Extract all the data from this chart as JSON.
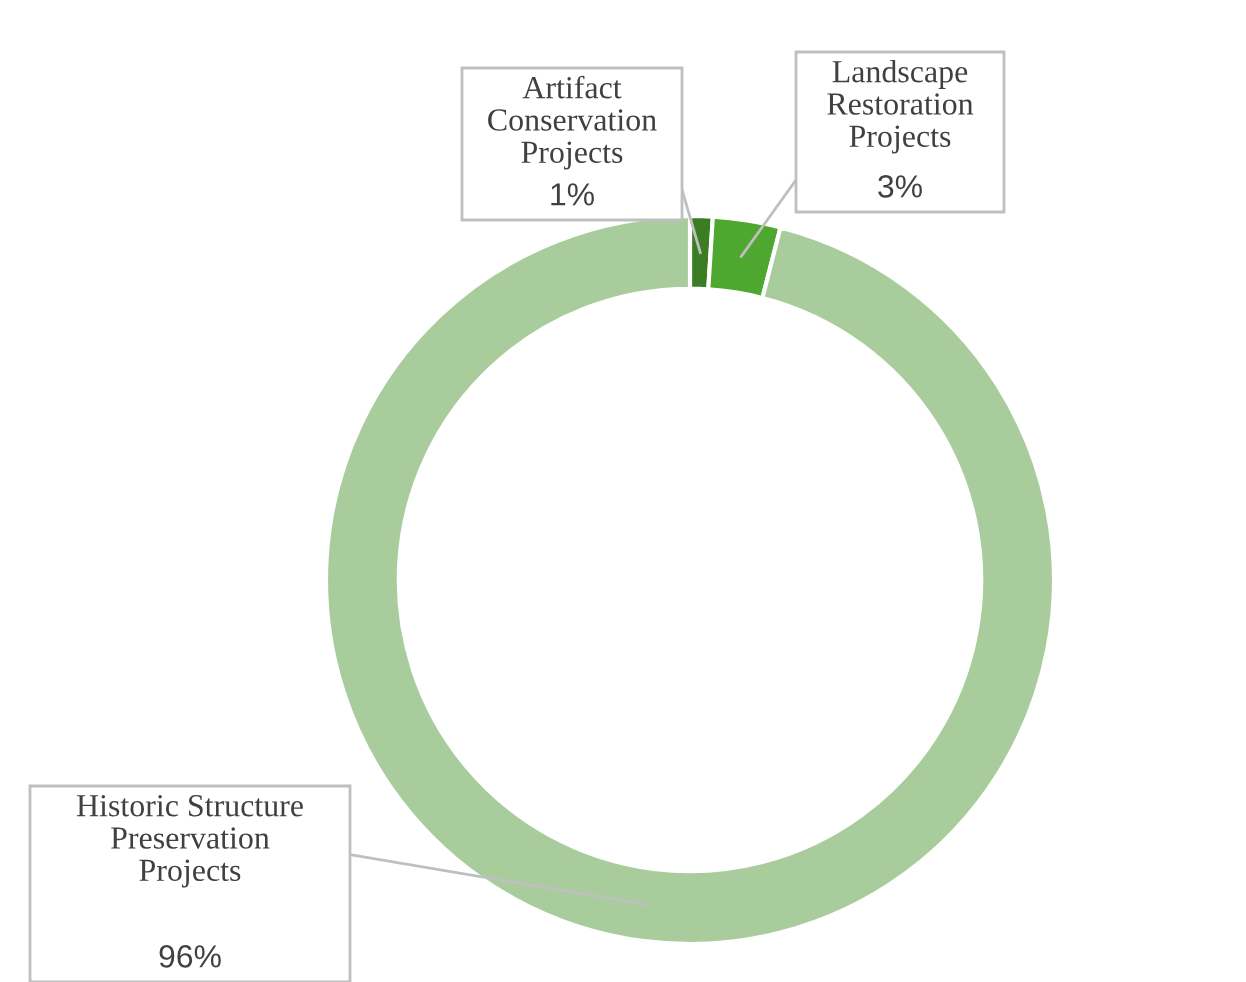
{
  "chart_data": {
    "type": "donut",
    "categories": [
      "Artifact\nConservation\nProjects",
      "Landscape\nRestoration\nProjects",
      "Historic Structure\nPreservation\nProjects"
    ],
    "values": [
      1,
      3,
      96
    ],
    "value_labels": [
      "1%",
      "3%",
      "96%"
    ],
    "colors": [
      "#3b7d23",
      "#4ea72e",
      "#a9cc9c"
    ],
    "legend": false
  }
}
